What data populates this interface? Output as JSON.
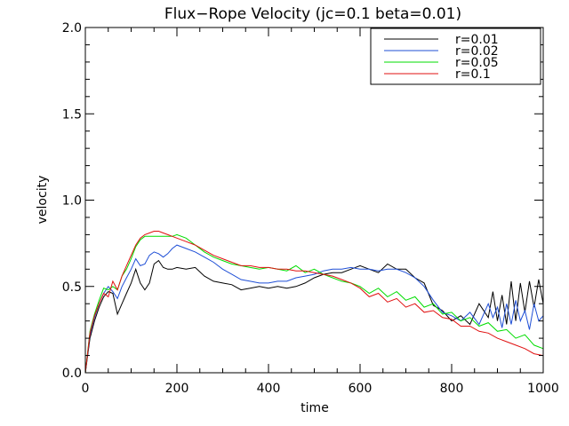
{
  "chart_data": {
    "type": "line",
    "title": "Flux−Rope Velocity (jc=0.1 beta=0.01)",
    "xlabel": "time",
    "ylabel": "velocity",
    "xlim": [
      0,
      1000
    ],
    "ylim": [
      0,
      2
    ],
    "xticks": [
      0,
      200,
      400,
      600,
      800,
      1000
    ],
    "yticks": [
      0.0,
      0.5,
      1.0,
      1.5,
      2.0
    ],
    "xtick_labels": [
      "0",
      "200",
      "400",
      "600",
      "800",
      "1000"
    ],
    "ytick_labels": [
      "0.0",
      "0.5",
      "1.0",
      "1.5",
      "2.0"
    ],
    "grid": false,
    "legend_position": "top-right",
    "series": [
      {
        "name": "r=0.01",
        "color": "#000000",
        "x": [
          0,
          10,
          20,
          30,
          40,
          50,
          60,
          70,
          80,
          90,
          100,
          110,
          120,
          130,
          140,
          150,
          160,
          170,
          180,
          190,
          200,
          220,
          240,
          260,
          280,
          300,
          320,
          340,
          360,
          380,
          400,
          420,
          440,
          460,
          480,
          500,
          520,
          540,
          560,
          580,
          600,
          620,
          640,
          660,
          680,
          700,
          720,
          740,
          760,
          780,
          800,
          820,
          840,
          860,
          880,
          890,
          900,
          910,
          920,
          930,
          940,
          950,
          960,
          970,
          980,
          990,
          1000
        ],
        "y": [
          0.0,
          0.2,
          0.3,
          0.38,
          0.44,
          0.47,
          0.46,
          0.34,
          0.4,
          0.46,
          0.52,
          0.6,
          0.52,
          0.48,
          0.52,
          0.63,
          0.65,
          0.61,
          0.6,
          0.6,
          0.61,
          0.6,
          0.61,
          0.56,
          0.53,
          0.52,
          0.51,
          0.48,
          0.49,
          0.5,
          0.49,
          0.5,
          0.49,
          0.5,
          0.52,
          0.55,
          0.57,
          0.58,
          0.58,
          0.6,
          0.62,
          0.6,
          0.58,
          0.63,
          0.6,
          0.6,
          0.55,
          0.52,
          0.39,
          0.36,
          0.3,
          0.33,
          0.28,
          0.4,
          0.32,
          0.47,
          0.3,
          0.45,
          0.28,
          0.53,
          0.3,
          0.52,
          0.35,
          0.53,
          0.38,
          0.54,
          0.4
        ]
      },
      {
        "name": "r=0.02",
        "color": "#1f4fd6",
        "x": [
          0,
          10,
          20,
          30,
          40,
          50,
          60,
          70,
          80,
          90,
          100,
          110,
          120,
          130,
          140,
          150,
          160,
          170,
          180,
          190,
          200,
          220,
          240,
          260,
          280,
          300,
          320,
          340,
          360,
          380,
          400,
          420,
          440,
          460,
          480,
          500,
          520,
          540,
          560,
          580,
          600,
          620,
          640,
          660,
          680,
          700,
          720,
          740,
          760,
          780,
          800,
          820,
          840,
          860,
          880,
          890,
          900,
          910,
          920,
          930,
          940,
          950,
          960,
          970,
          980,
          990,
          1000
        ],
        "y": [
          0.0,
          0.22,
          0.32,
          0.4,
          0.46,
          0.5,
          0.47,
          0.43,
          0.5,
          0.55,
          0.6,
          0.66,
          0.62,
          0.63,
          0.68,
          0.7,
          0.69,
          0.67,
          0.69,
          0.72,
          0.74,
          0.72,
          0.7,
          0.67,
          0.64,
          0.6,
          0.57,
          0.54,
          0.53,
          0.52,
          0.52,
          0.53,
          0.53,
          0.55,
          0.56,
          0.57,
          0.59,
          0.6,
          0.6,
          0.61,
          0.6,
          0.6,
          0.59,
          0.6,
          0.6,
          0.58,
          0.55,
          0.5,
          0.42,
          0.35,
          0.33,
          0.3,
          0.35,
          0.28,
          0.4,
          0.32,
          0.38,
          0.26,
          0.4,
          0.28,
          0.42,
          0.3,
          0.36,
          0.25,
          0.4,
          0.3,
          0.33
        ]
      },
      {
        "name": "r=0.05",
        "color": "#00dd00",
        "x": [
          0,
          10,
          20,
          30,
          40,
          50,
          60,
          70,
          80,
          90,
          100,
          110,
          120,
          130,
          140,
          150,
          160,
          170,
          180,
          190,
          200,
          220,
          240,
          260,
          280,
          300,
          320,
          340,
          360,
          380,
          400,
          420,
          440,
          460,
          480,
          500,
          520,
          540,
          560,
          580,
          600,
          620,
          640,
          660,
          680,
          700,
          720,
          740,
          760,
          780,
          800,
          820,
          840,
          860,
          880,
          900,
          920,
          940,
          960,
          980,
          1000
        ],
        "y": [
          0.0,
          0.24,
          0.34,
          0.42,
          0.49,
          0.48,
          0.5,
          0.48,
          0.56,
          0.6,
          0.66,
          0.73,
          0.77,
          0.79,
          0.79,
          0.79,
          0.79,
          0.79,
          0.79,
          0.79,
          0.8,
          0.78,
          0.74,
          0.7,
          0.67,
          0.65,
          0.63,
          0.62,
          0.61,
          0.6,
          0.61,
          0.6,
          0.59,
          0.62,
          0.58,
          0.6,
          0.57,
          0.55,
          0.53,
          0.52,
          0.5,
          0.46,
          0.49,
          0.44,
          0.47,
          0.42,
          0.44,
          0.38,
          0.4,
          0.34,
          0.35,
          0.3,
          0.32,
          0.27,
          0.29,
          0.24,
          0.25,
          0.2,
          0.22,
          0.16,
          0.14
        ]
      },
      {
        "name": "r=0.1",
        "color": "#e01010",
        "x": [
          0,
          10,
          20,
          30,
          40,
          50,
          60,
          70,
          80,
          90,
          100,
          110,
          120,
          130,
          140,
          150,
          160,
          170,
          180,
          190,
          200,
          220,
          240,
          260,
          280,
          300,
          320,
          340,
          360,
          380,
          400,
          420,
          440,
          460,
          480,
          500,
          520,
          540,
          560,
          580,
          600,
          620,
          640,
          660,
          680,
          700,
          720,
          740,
          760,
          780,
          800,
          820,
          840,
          860,
          880,
          900,
          920,
          940,
          960,
          980,
          1000
        ],
        "y": [
          0.0,
          0.23,
          0.33,
          0.4,
          0.46,
          0.44,
          0.53,
          0.48,
          0.56,
          0.62,
          0.68,
          0.74,
          0.78,
          0.8,
          0.81,
          0.82,
          0.82,
          0.81,
          0.8,
          0.79,
          0.78,
          0.76,
          0.74,
          0.71,
          0.68,
          0.66,
          0.64,
          0.62,
          0.62,
          0.61,
          0.61,
          0.6,
          0.6,
          0.59,
          0.59,
          0.58,
          0.57,
          0.56,
          0.54,
          0.52,
          0.49,
          0.44,
          0.46,
          0.41,
          0.43,
          0.38,
          0.4,
          0.35,
          0.36,
          0.32,
          0.31,
          0.27,
          0.27,
          0.24,
          0.23,
          0.2,
          0.18,
          0.16,
          0.14,
          0.11,
          0.1
        ]
      }
    ]
  }
}
